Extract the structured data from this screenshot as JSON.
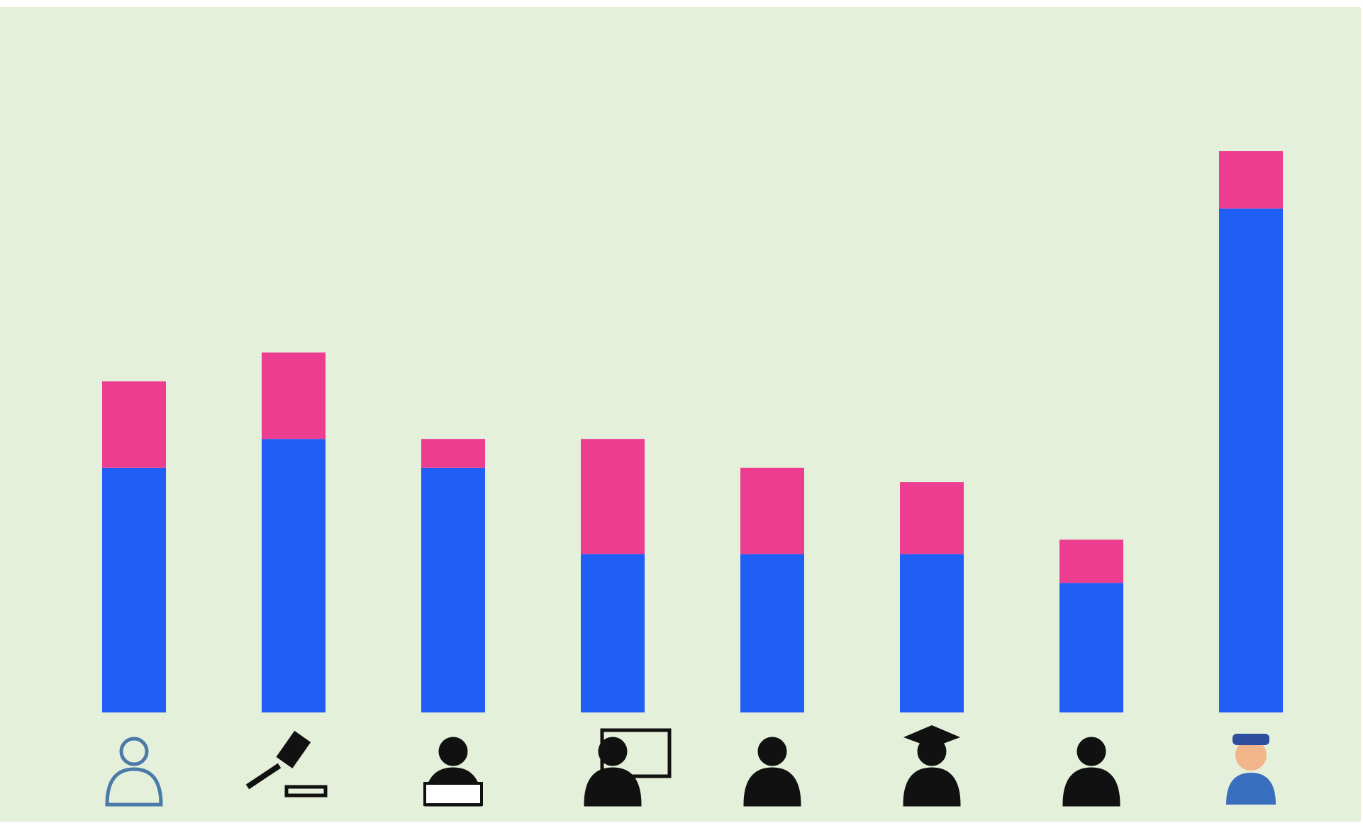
{
  "chart_data": {
    "type": "stacked_bar",
    "categories": [
      null,
      null,
      null,
      null,
      null,
      null,
      null,
      null
    ],
    "series": [
      {
        "color": "#1f5ff5",
        "values": [
          17,
          19,
          17,
          11,
          11,
          11,
          9,
          35
        ]
      },
      {
        "color": "#ec3d91",
        "values": [
          6,
          6,
          2,
          8,
          6,
          5,
          3,
          4
        ]
      }
    ],
    "ylim": [
      0,
      49
    ],
    "grid": false
  }
}
